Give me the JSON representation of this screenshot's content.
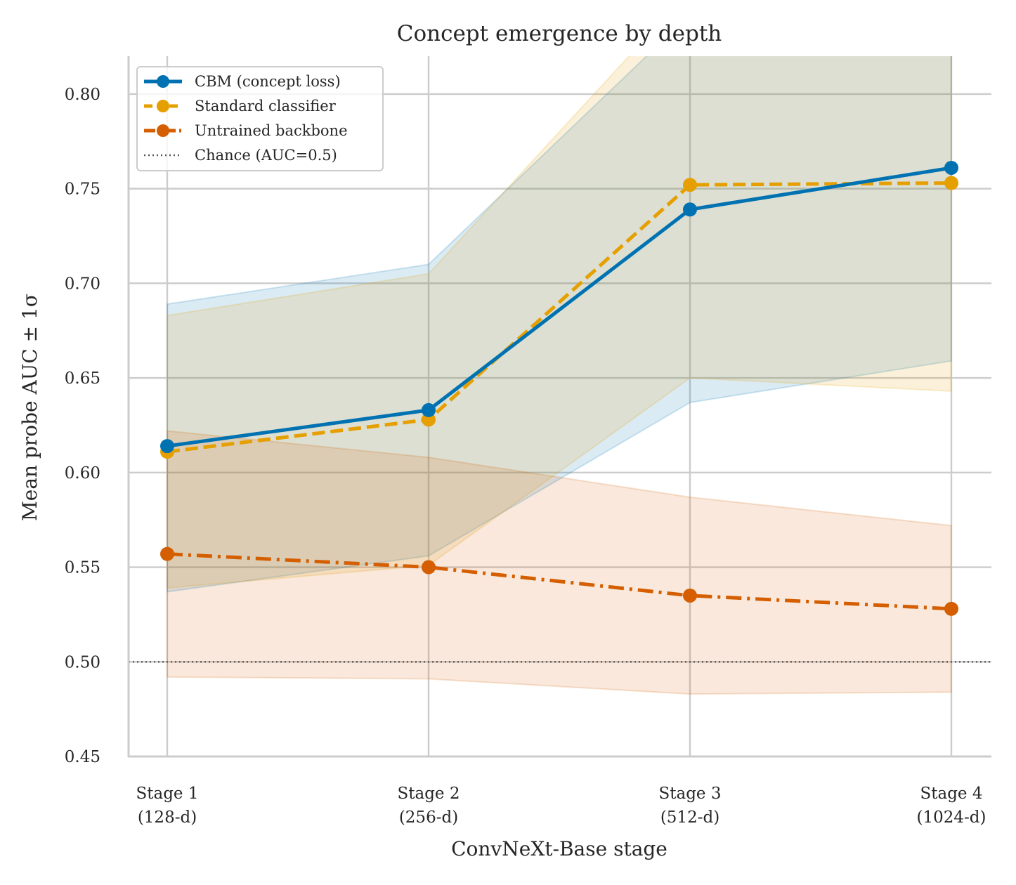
{
  "chart_data": {
    "type": "line",
    "title": "Concept emergence by depth",
    "xlabel": "ConvNeXt-Base stage",
    "ylabel": "Mean probe AUC ± 1σ",
    "categories": [
      [
        "Stage 1",
        "(128-d)"
      ],
      [
        "Stage 2",
        "(256-d)"
      ],
      [
        "Stage 3",
        "(512-d)"
      ],
      [
        "Stage 4",
        "(1024-d)"
      ]
    ],
    "ylim": [
      0.45,
      0.82
    ],
    "yticks": [
      "0.45",
      "0.50",
      "0.55",
      "0.60",
      "0.65",
      "0.70",
      "0.75",
      "0.80"
    ],
    "grid": true,
    "legend_position": "top-left",
    "series": [
      {
        "name": "CBM (concept loss)",
        "color": "#0072B2",
        "linestyle": "solid",
        "marker": "circle",
        "values": [
          0.614,
          0.633,
          0.739,
          0.761
        ],
        "lower": [
          0.537,
          0.556,
          0.637,
          0.659
        ],
        "upper": [
          0.689,
          0.71,
          0.842,
          0.862
        ]
      },
      {
        "name": "Standard classifier",
        "color": "#E69F00",
        "linestyle": "dashed",
        "marker": "circle",
        "values": [
          0.611,
          0.628,
          0.752,
          0.753
        ],
        "lower": [
          0.539,
          0.551,
          0.65,
          0.643
        ],
        "upper": [
          0.683,
          0.705,
          0.855,
          0.863
        ]
      },
      {
        "name": "Untrained backbone",
        "color": "#D55E00",
        "linestyle": "dashdot",
        "marker": "circle",
        "values": [
          0.557,
          0.55,
          0.535,
          0.528
        ],
        "lower": [
          0.492,
          0.491,
          0.483,
          0.484
        ],
        "upper": [
          0.622,
          0.608,
          0.587,
          0.572
        ]
      }
    ],
    "reference_line": {
      "name": "Chance (AUC=0.5)",
      "y": 0.5,
      "color": "#555555",
      "linestyle": "dotted"
    }
  }
}
